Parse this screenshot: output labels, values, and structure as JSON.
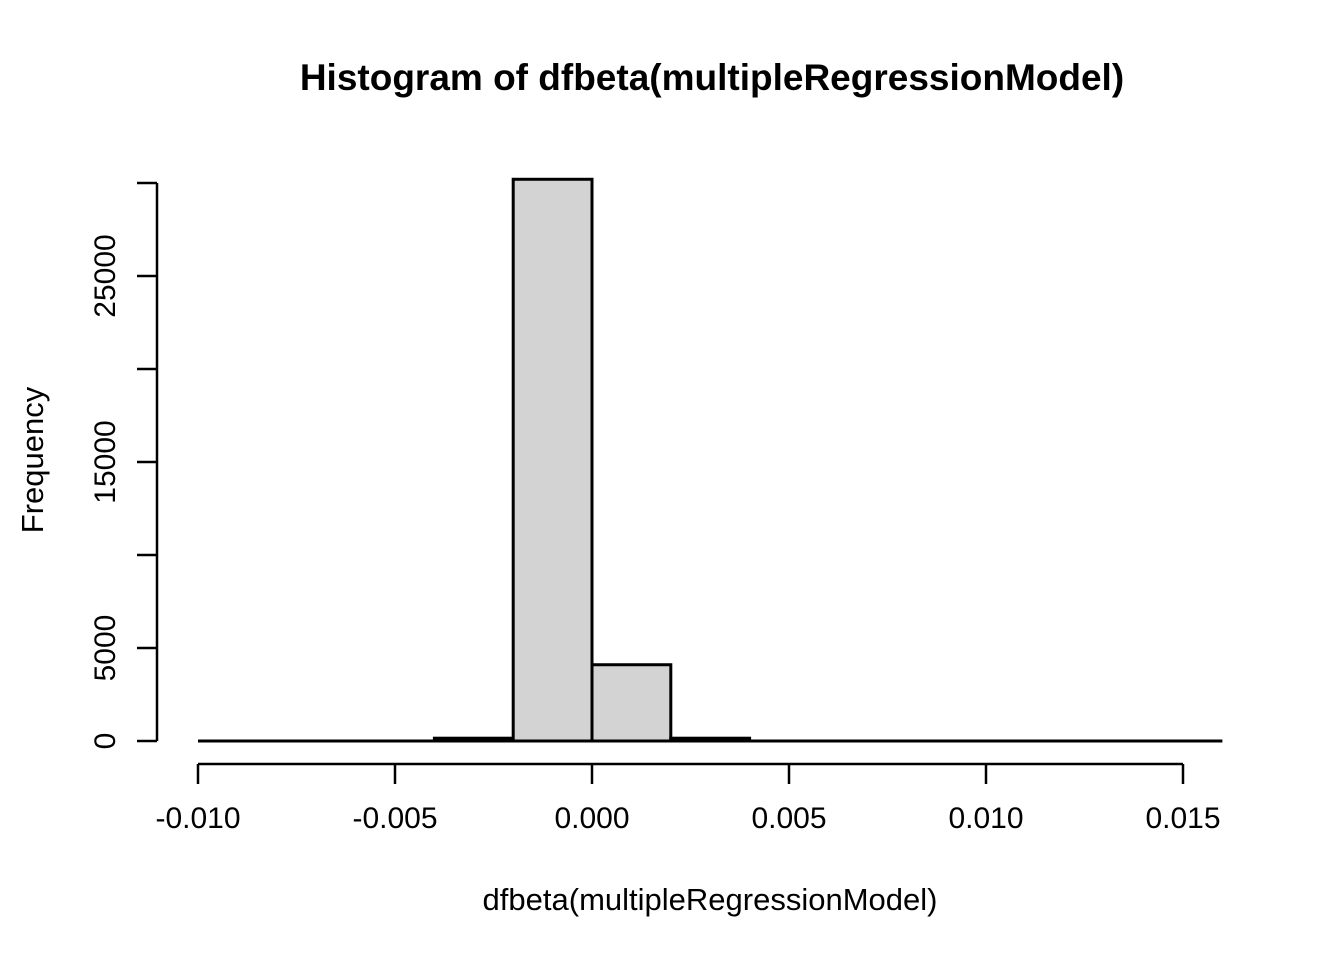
{
  "title": "Histogram of dfbeta(multipleRegressionModel)",
  "xlabel": "dfbeta(multipleRegressionModel)",
  "ylabel": "Frequency",
  "colors": {
    "background": "#ffffff",
    "bar_fill": "#d3d3d3",
    "bar_stroke": "#000000",
    "axis": "#000000",
    "text": "#000000"
  },
  "chart_data": {
    "type": "bar",
    "subtype": "histogram",
    "title": "Histogram of dfbeta(multipleRegressionModel)",
    "xlabel": "dfbeta(multipleRegressionModel)",
    "ylabel": "Frequency",
    "bin_edges": [
      -0.01,
      -0.008,
      -0.006,
      -0.004,
      -0.002,
      0.0,
      0.002,
      0.004,
      0.006,
      0.008,
      0.01,
      0.012,
      0.014,
      0.016
    ],
    "counts": [
      0,
      0,
      0,
      150,
      30200,
      4100,
      150,
      0,
      0,
      0,
      0,
      0,
      0
    ],
    "x_ticks": [
      -0.01,
      -0.005,
      0.0,
      0.005,
      0.01,
      0.015
    ],
    "x_tick_labels": [
      "-0.010",
      "-0.005",
      "0.000",
      "0.005",
      "0.010",
      "0.015"
    ],
    "y_ticks": [
      0,
      5000,
      10000,
      15000,
      20000,
      25000,
      30000
    ],
    "y_tick_labels": [
      "0",
      "5000",
      "",
      "15000",
      "",
      "25000",
      ""
    ],
    "xlim": [
      -0.01,
      0.016
    ],
    "ylim": [
      0,
      30000
    ],
    "grid": false,
    "legend": null,
    "bar_fill": "#d3d3d3",
    "bar_stroke": "#000000"
  }
}
